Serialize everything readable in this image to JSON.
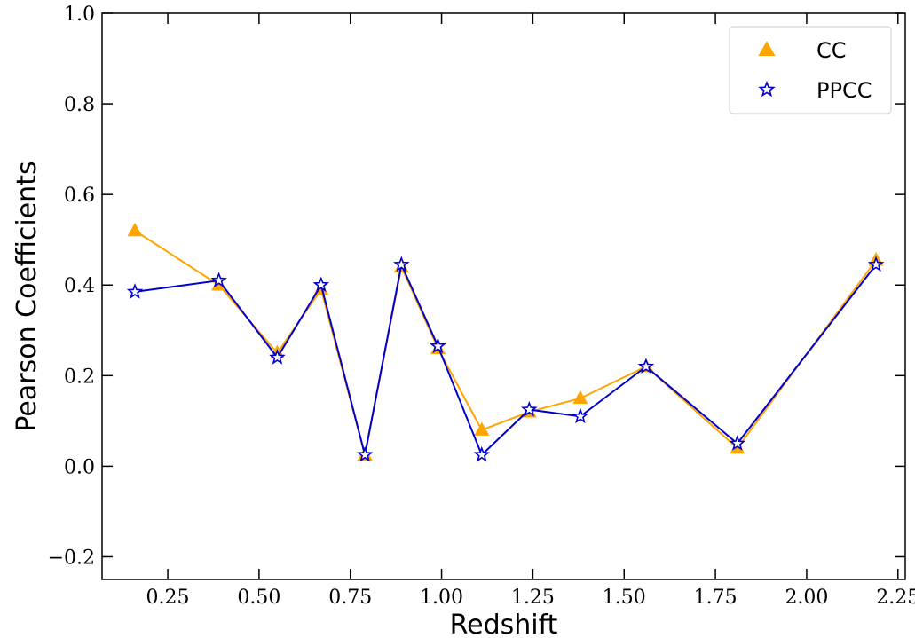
{
  "chart_data": {
    "type": "line",
    "title": "",
    "xlabel": "Redshift",
    "ylabel": "Pearson Coefficients",
    "xlim": [
      0.07,
      2.27
    ],
    "ylim": [
      -0.25,
      1.0
    ],
    "x_ticks": [
      0.25,
      0.5,
      0.75,
      1.0,
      1.25,
      1.5,
      1.75,
      2.0,
      2.25
    ],
    "x_tick_labels": [
      "0.25",
      "0.50",
      "0.75",
      "1.00",
      "1.25",
      "1.50",
      "1.75",
      "2.00",
      "2.25"
    ],
    "y_ticks": [
      -0.2,
      0.0,
      0.2,
      0.4,
      0.6,
      0.8,
      1.0
    ],
    "y_tick_labels": [
      "−0.2",
      "0.0",
      "0.2",
      "0.4",
      "0.6",
      "0.8",
      "1.0"
    ],
    "grid": false,
    "legend_position": "top-right",
    "series": [
      {
        "name": "CC",
        "marker": "triangle",
        "color": "#FFA500",
        "x": [
          0.16,
          0.39,
          0.55,
          0.67,
          0.79,
          0.89,
          0.99,
          1.11,
          1.24,
          1.38,
          1.56,
          1.81,
          2.19
        ],
        "y": [
          0.52,
          0.4,
          0.25,
          0.39,
          0.025,
          0.44,
          0.26,
          0.08,
          0.12,
          0.15,
          0.22,
          0.04,
          0.455
        ]
      },
      {
        "name": "PPCC",
        "marker": "star",
        "color": "#0000CD",
        "x": [
          0.16,
          0.39,
          0.55,
          0.67,
          0.79,
          0.89,
          0.99,
          1.11,
          1.24,
          1.38,
          1.56,
          1.81,
          2.19
        ],
        "y": [
          0.385,
          0.41,
          0.24,
          0.4,
          0.025,
          0.445,
          0.265,
          0.025,
          0.125,
          0.11,
          0.22,
          0.05,
          0.445
        ]
      }
    ]
  }
}
